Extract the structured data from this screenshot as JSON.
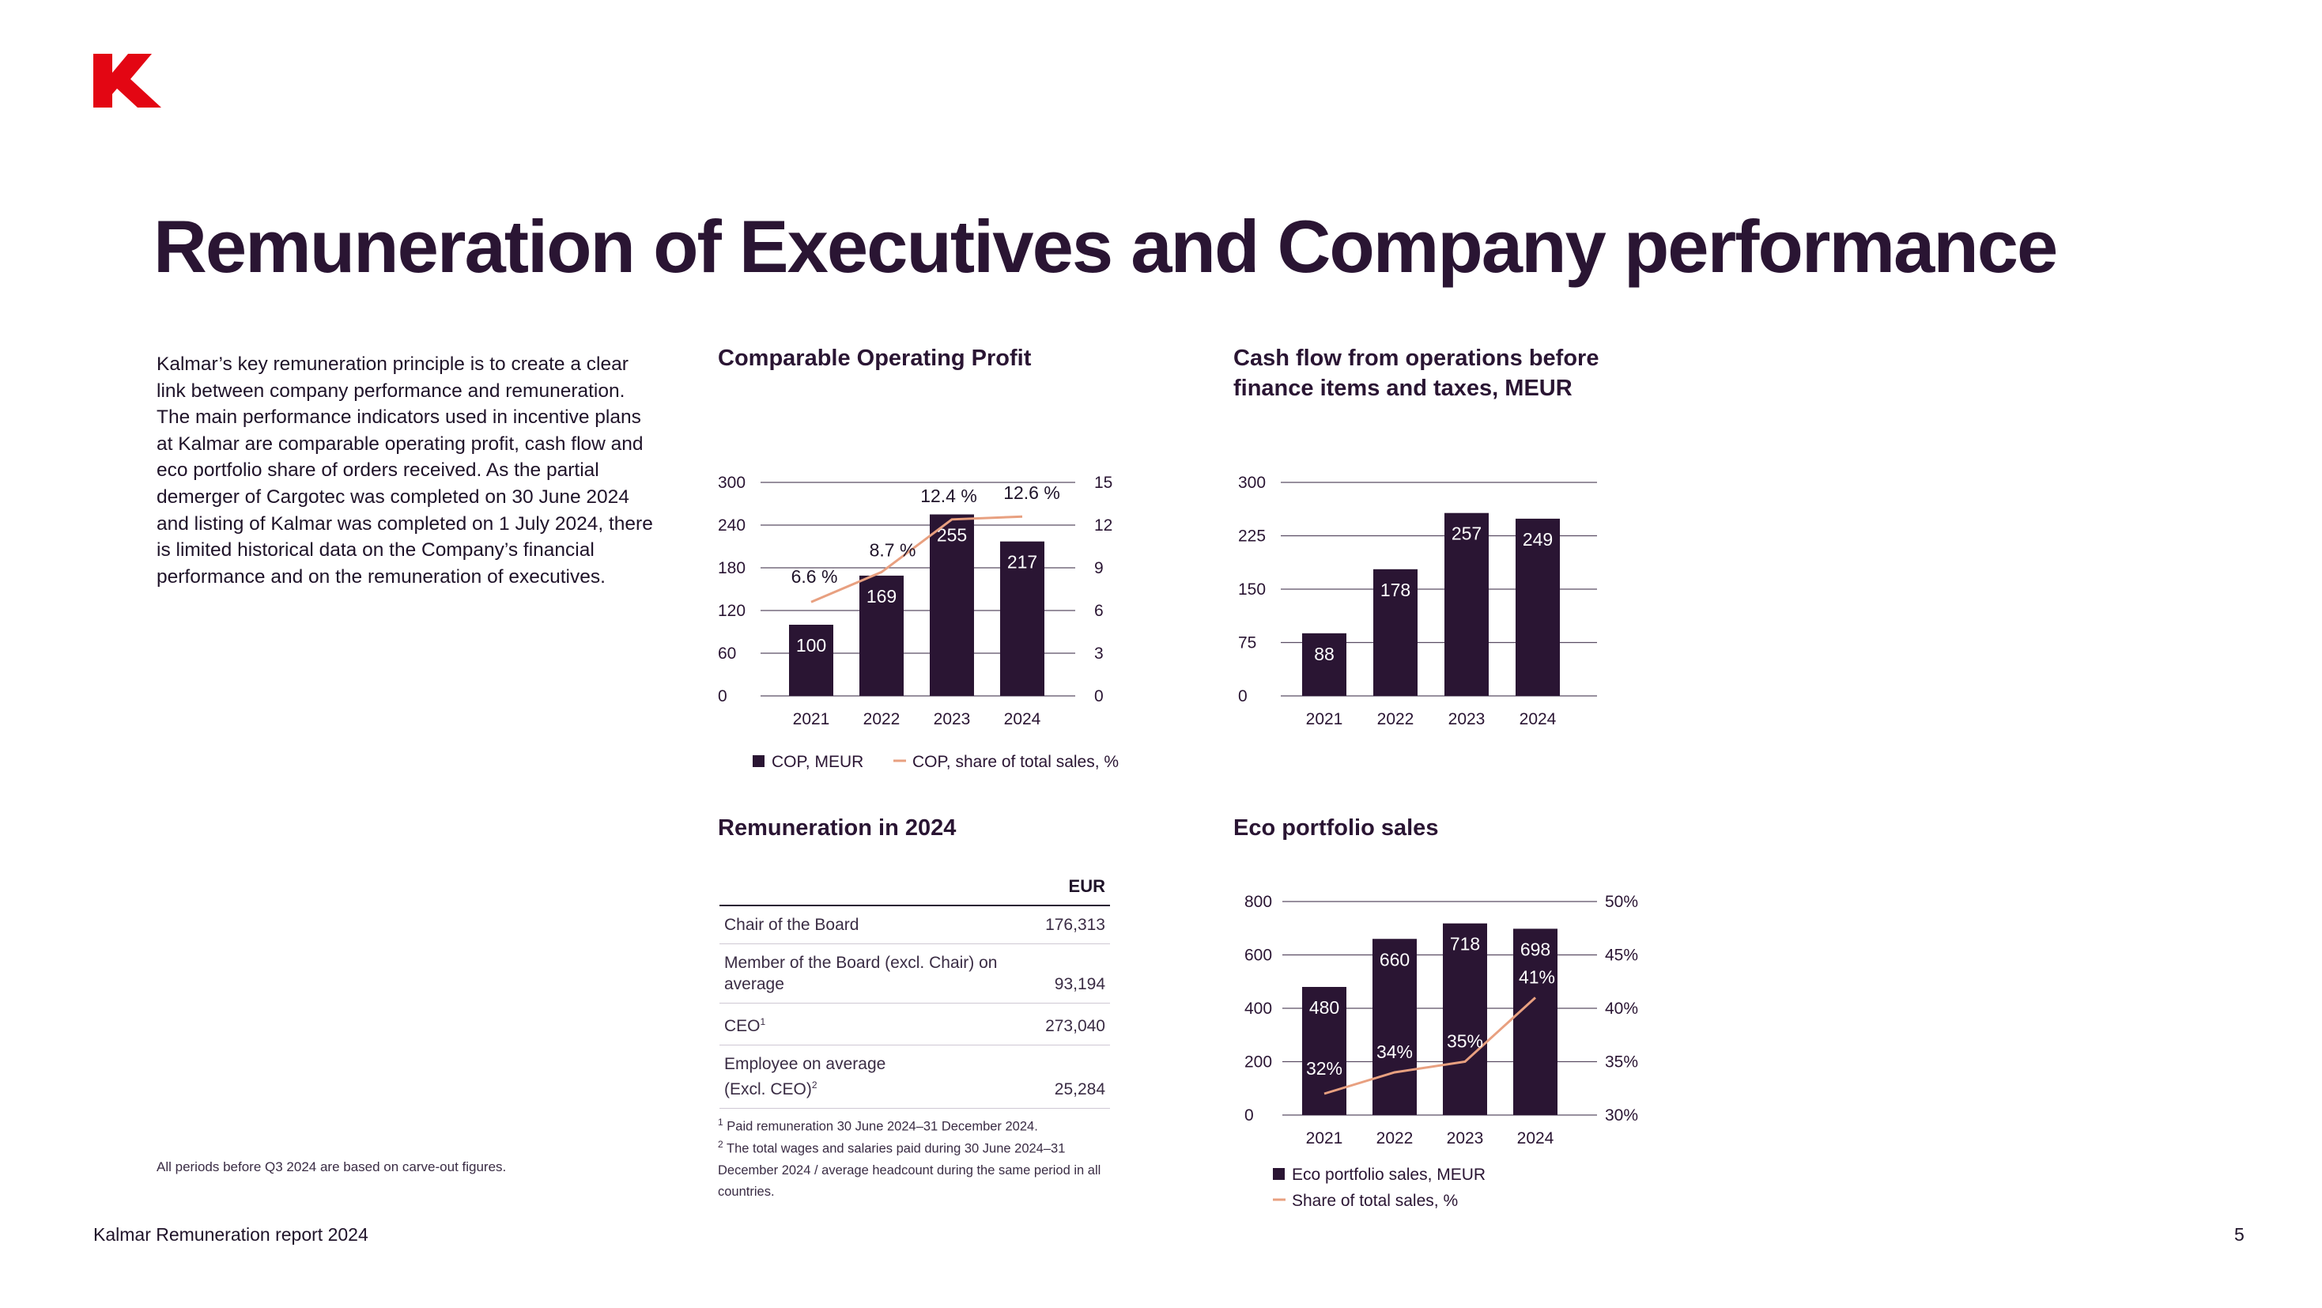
{
  "brand": {
    "logo_color": "#e30613",
    "dark": "#2a1533",
    "line": "#e8a080"
  },
  "page": {
    "title": "Remuneration of Executives and Company performance",
    "intro": "Kalmar’s key remuneration principle is to create a clear link between company performance and remuneration. The main performance indicators used in incentive plans at Kalmar are comparable operating profit, cash flow and eco portfolio share of orders received. As the partial demerger of Cargotec was completed on 30 June 2024 and listing of Kalmar was completed on 1 July 2024, there is limited historical data on the Company’s financial performance and on the remuneration of executives.",
    "note": "All periods before Q3 2024 are based on carve-out figures.",
    "footer_left": "Kalmar Remuneration report 2024",
    "page_number": "5"
  },
  "chart_data": [
    {
      "id": "cop",
      "type": "bar",
      "title": "Comparable Operating Profit",
      "categories": [
        "2021",
        "2022",
        "2023",
        "2024"
      ],
      "series": [
        {
          "name": "COP, MEUR",
          "type": "bar",
          "axis": "left",
          "values": [
            100,
            169,
            255,
            217
          ],
          "labels": [
            "100",
            "169",
            "255",
            "217"
          ]
        },
        {
          "name": "COP, share of total sales, %",
          "type": "line",
          "axis": "right",
          "values": [
            6.6,
            8.7,
            12.4,
            12.6
          ],
          "labels": [
            "6.6 %",
            "8.7 %",
            "12.4 %",
            "12.6 %"
          ]
        }
      ],
      "ylim": [
        0,
        300
      ],
      "yticks": [
        "0",
        "60",
        "120",
        "180",
        "240",
        "300"
      ],
      "y2lim": [
        0,
        15
      ],
      "y2ticks": [
        "0",
        "3",
        "6",
        "9",
        "12",
        "15"
      ],
      "legend": "bottom",
      "grid": true
    },
    {
      "id": "cashflow",
      "type": "bar",
      "title": "Cash flow from operations before finance items and taxes, MEUR",
      "title_lines": [
        "Cash flow from operations before",
        "finance items and taxes, MEUR"
      ],
      "categories": [
        "2021",
        "2022",
        "2023",
        "2024"
      ],
      "values": [
        88,
        178,
        257,
        249
      ],
      "labels": [
        "88",
        "178",
        "257",
        "249"
      ],
      "ylim": [
        0,
        300
      ],
      "yticks": [
        "0",
        "75",
        "150",
        "225",
        "300"
      ],
      "grid": true
    },
    {
      "id": "eco",
      "type": "bar",
      "title": "Eco portfolio sales",
      "categories": [
        "2021",
        "2022",
        "2023",
        "2024"
      ],
      "series": [
        {
          "name": "Eco portfolio sales, MEUR",
          "type": "bar",
          "axis": "left",
          "values": [
            480,
            660,
            718,
            698
          ],
          "labels": [
            "480",
            "660",
            "718",
            "698"
          ]
        },
        {
          "name": "Share of total sales, %",
          "type": "line",
          "axis": "right",
          "values": [
            32,
            34,
            35,
            41
          ],
          "labels": [
            "32%",
            "34%",
            "35%",
            "41%"
          ]
        }
      ],
      "ylim": [
        0,
        800
      ],
      "yticks": [
        "0",
        "200",
        "400",
        "600",
        "800"
      ],
      "y2lim": [
        30,
        50
      ],
      "y2ticks": [
        "30%",
        "35%",
        "40%",
        "45%",
        "50%"
      ],
      "legend": "bottom",
      "grid": true
    }
  ],
  "remuneration": {
    "title": "Remuneration in 2024",
    "currency_header": "EUR",
    "rows": [
      {
        "label": "Chair of the Board",
        "value": "176,313"
      },
      {
        "label": "Member of the Board (excl. Chair) on average",
        "value": "93,194"
      },
      {
        "label": "CEO",
        "sup": "1",
        "value": "273,040"
      },
      {
        "label": "Employee on average (Excl. CEO)",
        "sup": "2",
        "value": "25,284"
      }
    ],
    "footnotes": [
      {
        "mark": "1",
        "text": "Paid remuneration 30 June 2024–31 December 2024."
      },
      {
        "mark": "2",
        "text": "The total wages and salaries paid during 30 June 2024–31 December 2024 / average headcount during the same period in all countries."
      }
    ]
  }
}
